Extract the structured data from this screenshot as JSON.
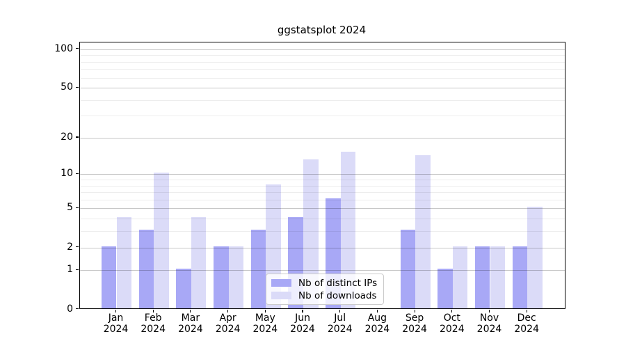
{
  "title": "ggstatsplot 2024",
  "chart_data": {
    "type": "bar",
    "title": "ggstatsplot 2024",
    "categories": [
      "Jan",
      "Feb",
      "Mar",
      "Apr",
      "May",
      "Jun",
      "Jul",
      "Aug",
      "Sep",
      "Oct",
      "Nov",
      "Dec"
    ],
    "category_year": "2024",
    "series": [
      {
        "name": "Nb of distinct IPs",
        "color": "#a8a8f6",
        "values": [
          2,
          3,
          1,
          2,
          3,
          4,
          6,
          0,
          3,
          1,
          2,
          2
        ]
      },
      {
        "name": "Nb of downloads",
        "color": "#dbdbf8",
        "values": [
          4,
          10,
          4,
          2,
          8,
          13,
          15,
          0,
          14,
          2,
          2,
          5
        ]
      }
    ],
    "yscale": "log1p",
    "ylim": [
      0,
      113
    ],
    "yticks": [
      0,
      1,
      2,
      5,
      10,
      20,
      50,
      100
    ],
    "yticks_minor": [
      3,
      4,
      6,
      7,
      8,
      9,
      30,
      40,
      60,
      70,
      80,
      90
    ],
    "grid": true,
    "grid_major_color": "#c7c7c7",
    "grid_minor_color": "#ececec",
    "legend_position": "bottom-center",
    "legend_labels": [
      "Nb of distinct IPs",
      "Nb of downloads"
    ]
  }
}
